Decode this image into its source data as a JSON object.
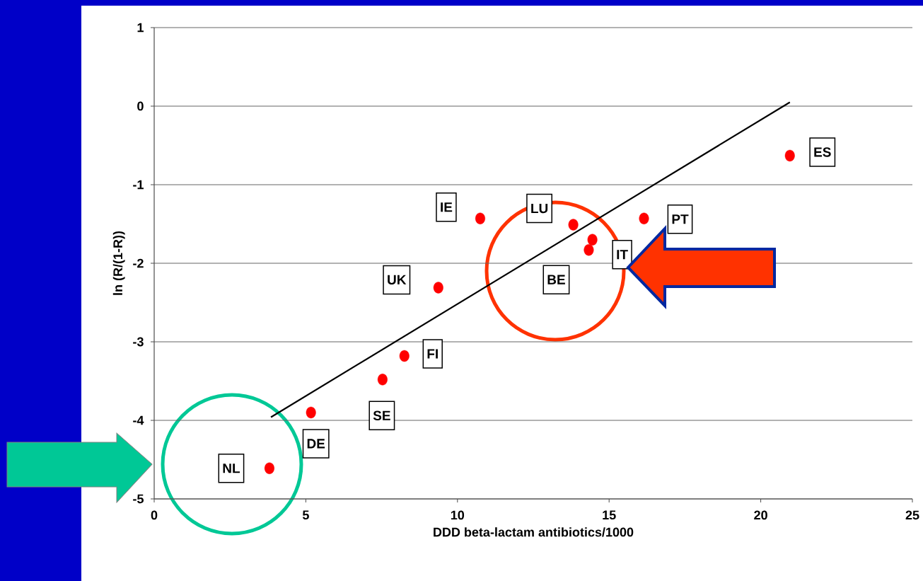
{
  "chart_data": {
    "type": "scatter",
    "xlabel": "DDD beta-lactam antibiotics/1000",
    "ylabel": "ln (R/(1-R))",
    "x": [
      3.8,
      5.17,
      7.53,
      8.25,
      9.37,
      10.75,
      13.82,
      14.33,
      14.45,
      16.15,
      20.96
    ],
    "series": [
      {
        "color": "#ff0000",
        "marker": "circle",
        "values": [
          -4.61,
          -3.9,
          -3.48,
          -3.18,
          -2.31,
          -1.43,
          -1.51,
          -1.83,
          -1.7,
          -1.43,
          -0.63
        ]
      },
      {
        "type": "line",
        "color": "#000000",
        "marker": "none",
        "x": [
          3.85,
          20.96
        ],
        "values": [
          -3.96,
          0.05
        ]
      }
    ],
    "annotations": [
      {
        "text": "NL",
        "x": 3.8,
        "y": -4.61
      },
      {
        "text": "DE",
        "x": 5.17,
        "y": -3.9
      },
      {
        "text": "SE",
        "x": 7.53,
        "y": -3.48
      },
      {
        "text": "FI",
        "x": 8.25,
        "y": -3.18
      },
      {
        "text": "UK",
        "x": 9.37,
        "y": -2.31
      },
      {
        "text": "IE",
        "x": 10.75,
        "y": -1.43
      },
      {
        "text": "LU",
        "x": 13.82,
        "y": -1.51
      },
      {
        "text": "BE",
        "x": 14.33,
        "y": -1.83
      },
      {
        "text": "IT",
        "x": 14.45,
        "y": -1.7
      },
      {
        "text": "PT",
        "x": 16.15,
        "y": -1.43
      },
      {
        "text": "ES",
        "x": 20.96,
        "y": -0.63
      }
    ],
    "xlim": [
      0,
      25
    ],
    "ylim": [
      -5,
      1
    ],
    "xticks": [
      0,
      5,
      10,
      15,
      20,
      25
    ],
    "yticks": [
      -5,
      -4,
      -3,
      -2,
      -1,
      0,
      1
    ],
    "grid": "y"
  }
}
